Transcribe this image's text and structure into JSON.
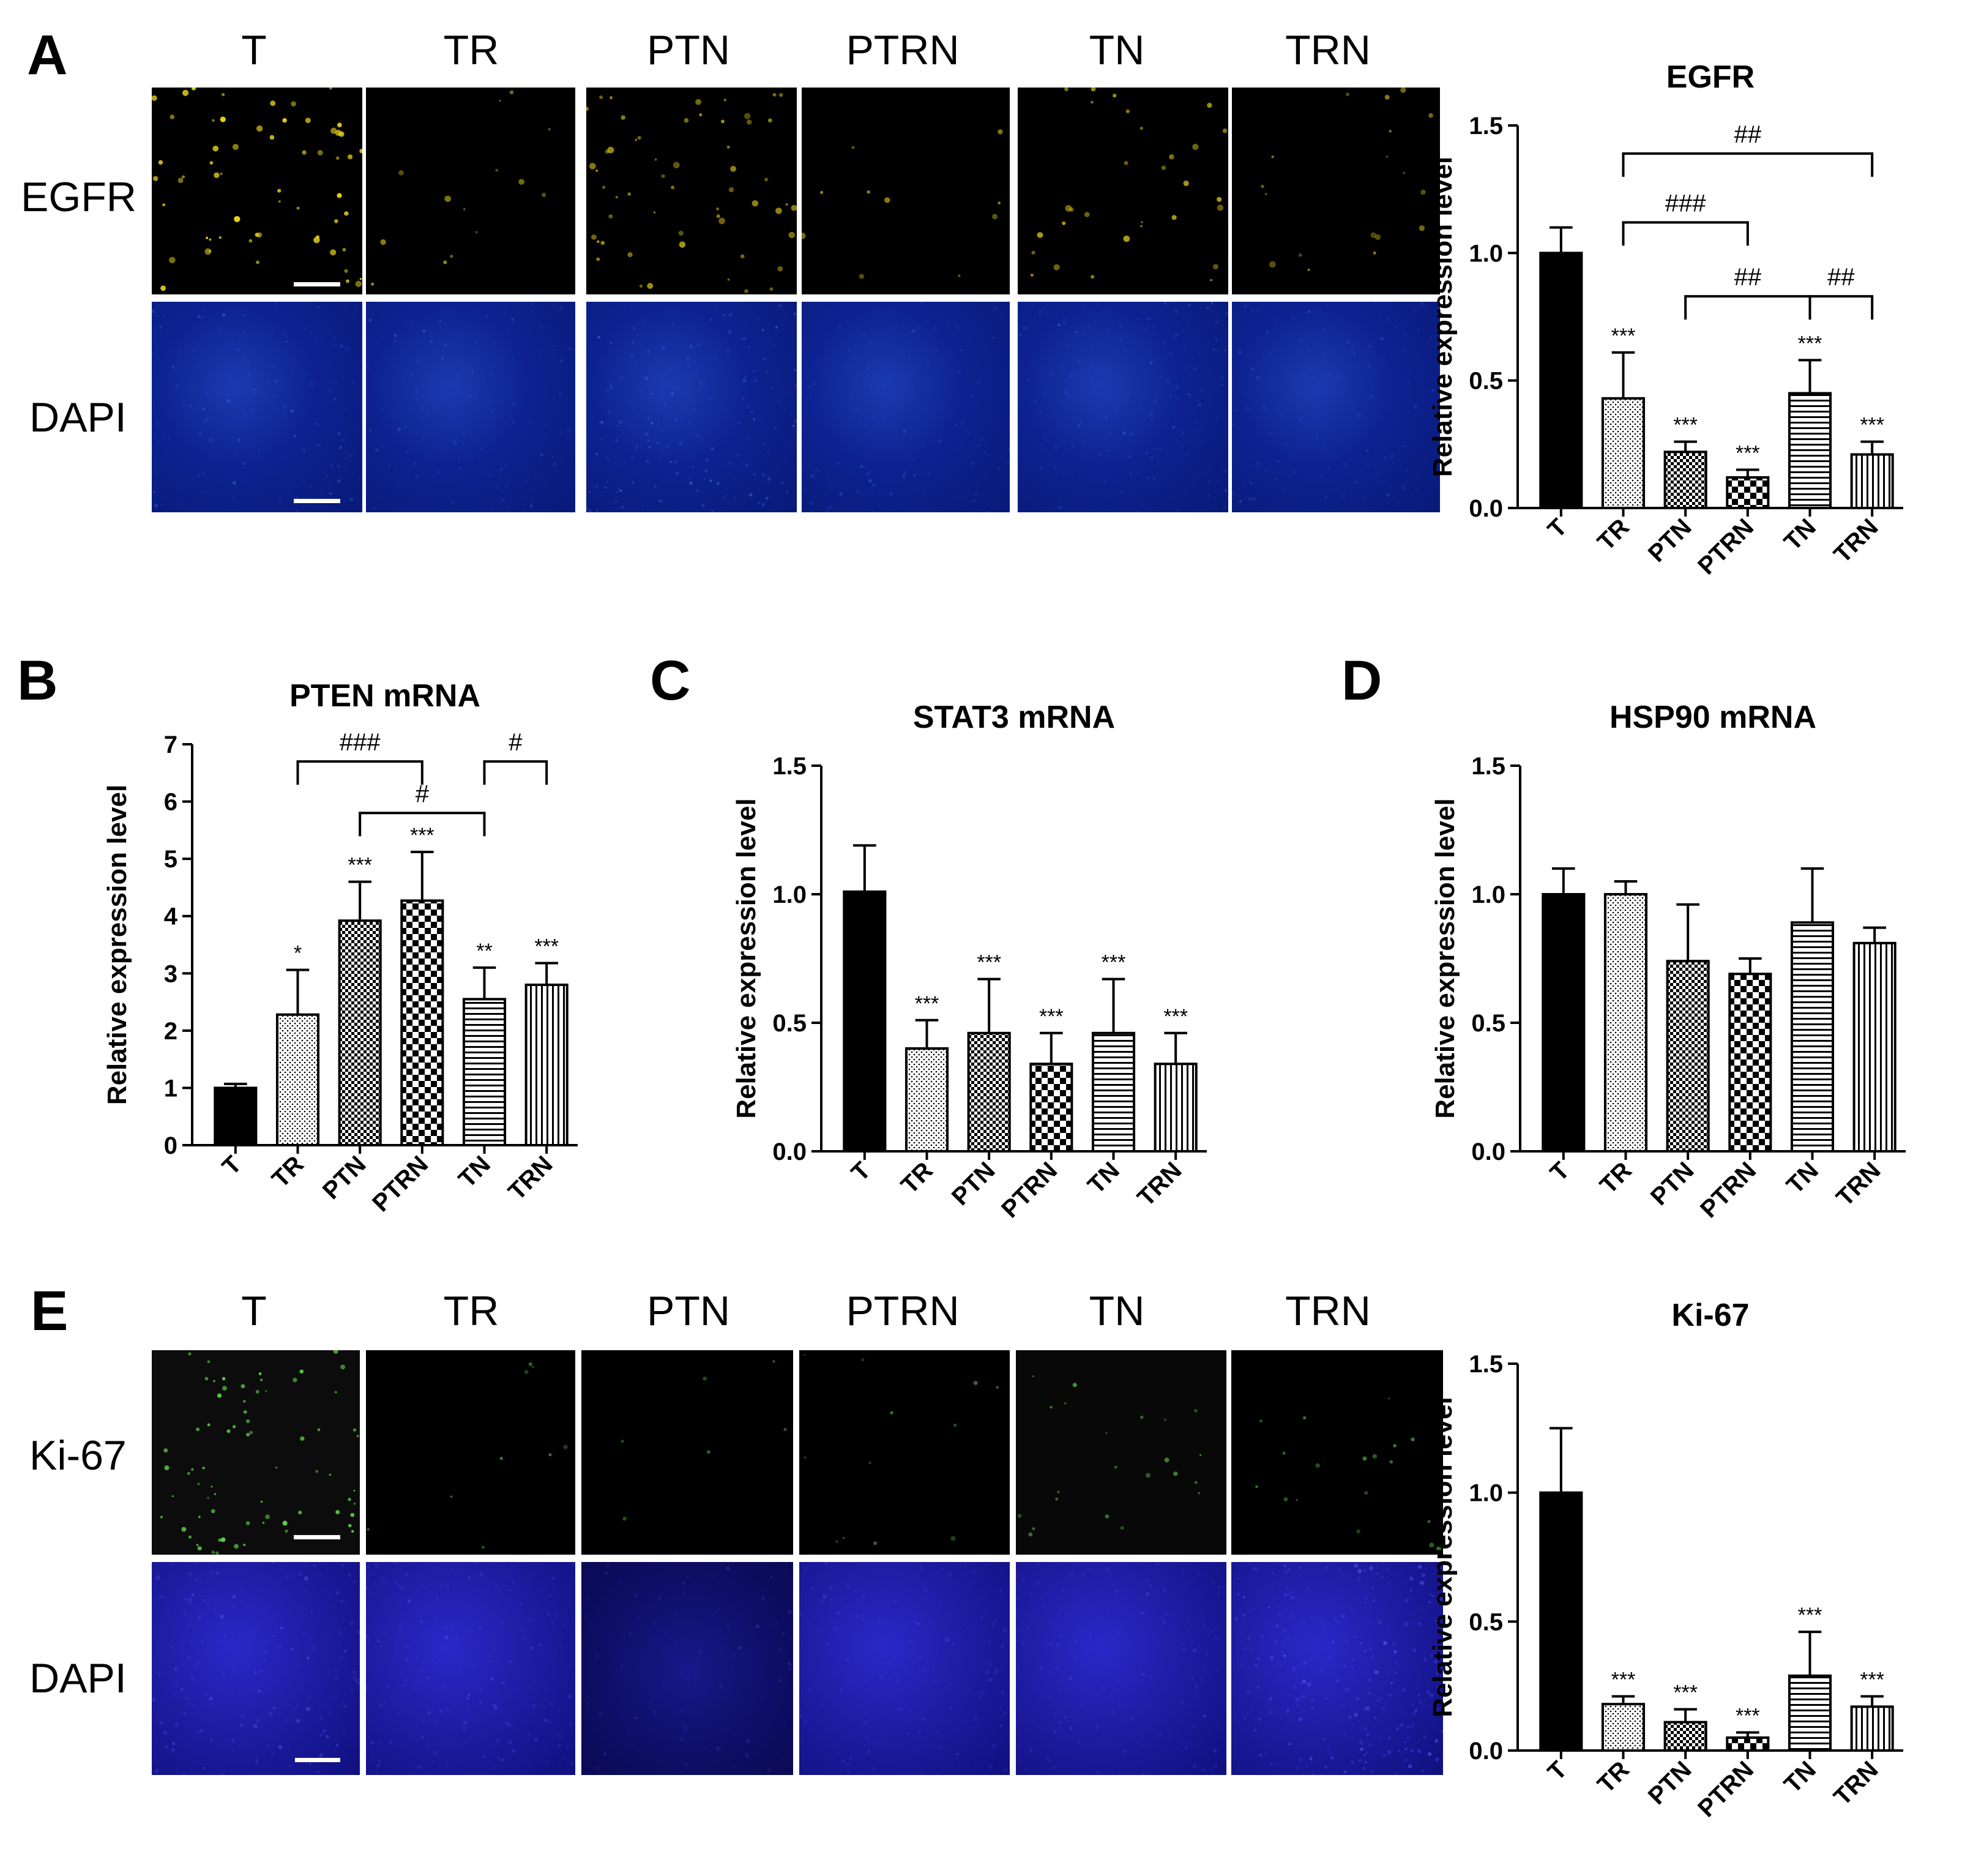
{
  "panels": {
    "A": {
      "letter": "A",
      "column_labels": [
        "T",
        "TR",
        "PTN",
        "PTRN",
        "TN",
        "TRN"
      ],
      "row_labels": [
        "EGFR",
        "DAPI"
      ]
    },
    "B": {
      "letter": "B"
    },
    "C": {
      "letter": "C"
    },
    "D": {
      "letter": "D"
    },
    "E": {
      "letter": "E",
      "column_labels": [
        "T",
        "TR",
        "PTN",
        "PTRN",
        "TN",
        "TRN"
      ],
      "row_labels": [
        "Ki-67",
        "DAPI"
      ]
    }
  },
  "colors": {
    "egfr_signal": "#e8d21a",
    "ki67_signal": "#5fd048",
    "dapi": "#0d2290",
    "bar_fill": "#000000"
  },
  "chart_data": [
    {
      "id": "egfr",
      "type": "bar",
      "title": "EGFR",
      "ylabel": "Relative expression level",
      "xlabel": "",
      "ylim": [
        0,
        1.5
      ],
      "yticks": [
        "0.0",
        "0.5",
        "1.0",
        "1.5"
      ],
      "categories": [
        "T",
        "TR",
        "PTN",
        "PTRN",
        "TN",
        "TRN"
      ],
      "values": [
        1.0,
        0.43,
        0.22,
        0.12,
        0.45,
        0.21
      ],
      "errors": [
        0.1,
        0.18,
        0.04,
        0.03,
        0.13,
        0.05
      ],
      "patterns": [
        "solid",
        "dots",
        "grid",
        "checker",
        "hlines",
        "vlines"
      ],
      "significance": [
        "",
        "***",
        "***",
        "***",
        "***",
        "***"
      ],
      "brackets": [
        {
          "from": 1,
          "to": 5,
          "label": "##",
          "y": 1.39
        },
        {
          "from": 1,
          "to": 3,
          "label": "###",
          "y": 1.12
        },
        {
          "from": 2,
          "to": 4,
          "label": "##",
          "y": 0.83
        },
        {
          "from": 4,
          "to": 5,
          "label": "##",
          "y": 0.83
        }
      ]
    },
    {
      "id": "pten",
      "type": "bar",
      "title": "PTEN mRNA",
      "ylabel": "Relative expression level",
      "xlabel": "",
      "ylim": [
        0,
        7
      ],
      "yticks": [
        "0",
        "1",
        "2",
        "3",
        "4",
        "5",
        "6",
        "7"
      ],
      "categories": [
        "T",
        "TR",
        "PTN",
        "PTRN",
        "TN",
        "TRN"
      ],
      "values": [
        1.0,
        2.28,
        3.92,
        4.27,
        2.55,
        2.8
      ],
      "errors": [
        0.07,
        0.78,
        0.68,
        0.85,
        0.55,
        0.38
      ],
      "patterns": [
        "solid",
        "dots",
        "grid",
        "checker",
        "hlines",
        "vlines"
      ],
      "significance": [
        "",
        "*",
        "***",
        "***",
        "**",
        "***"
      ],
      "brackets": [
        {
          "from": 1,
          "to": 3,
          "label": "###",
          "y": 6.7
        },
        {
          "from": 4,
          "to": 5,
          "label": "#",
          "y": 6.7
        },
        {
          "from": 2,
          "to": 4,
          "label": "#",
          "y": 5.8
        }
      ]
    },
    {
      "id": "stat3",
      "type": "bar",
      "title": "STAT3 mRNA",
      "ylabel": "Relative expression level",
      "xlabel": "",
      "ylim": [
        0,
        1.5
      ],
      "yticks": [
        "0.0",
        "0.5",
        "1.0",
        "1.5"
      ],
      "categories": [
        "T",
        "TR",
        "PTN",
        "PTRN",
        "TN",
        "TRN"
      ],
      "values": [
        1.01,
        0.4,
        0.46,
        0.34,
        0.46,
        0.34
      ],
      "errors": [
        0.18,
        0.11,
        0.21,
        0.12,
        0.21,
        0.12
      ],
      "patterns": [
        "solid",
        "dots",
        "grid",
        "checker",
        "hlines",
        "vlines"
      ],
      "significance": [
        "",
        "***",
        "***",
        "***",
        "***",
        "***"
      ],
      "brackets": []
    },
    {
      "id": "hsp90",
      "type": "bar",
      "title": "HSP90 mRNA",
      "ylabel": "Relative expression level",
      "xlabel": "",
      "ylim": [
        0,
        1.5
      ],
      "yticks": [
        "0.0",
        "0.5",
        "1.0",
        "1.5"
      ],
      "categories": [
        "T",
        "TR",
        "PTN",
        "PTRN",
        "TN",
        "TRN"
      ],
      "values": [
        1.0,
        1.0,
        0.74,
        0.69,
        0.89,
        0.81
      ],
      "errors": [
        0.1,
        0.05,
        0.22,
        0.06,
        0.21,
        0.06
      ],
      "patterns": [
        "solid",
        "dots",
        "grid",
        "checker",
        "hlines",
        "vlines"
      ],
      "significance": [
        "",
        "",
        "",
        "",
        "",
        ""
      ],
      "brackets": []
    },
    {
      "id": "ki67",
      "type": "bar",
      "title": "Ki-67",
      "ylabel": "Relative expression level",
      "xlabel": "",
      "ylim": [
        0,
        1.5
      ],
      "yticks": [
        "0.0",
        "0.5",
        "1.0",
        "1.5"
      ],
      "categories": [
        "T",
        "TR",
        "PTN",
        "PTRN",
        "TN",
        "TRN"
      ],
      "values": [
        1.0,
        0.18,
        0.11,
        0.05,
        0.29,
        0.17
      ],
      "errors": [
        0.25,
        0.03,
        0.05,
        0.02,
        0.17,
        0.04
      ],
      "patterns": [
        "solid",
        "dots",
        "grid",
        "checker",
        "hlines",
        "vlines"
      ],
      "significance": [
        "",
        "***",
        "***",
        "***",
        "***",
        "***"
      ],
      "brackets": []
    }
  ]
}
